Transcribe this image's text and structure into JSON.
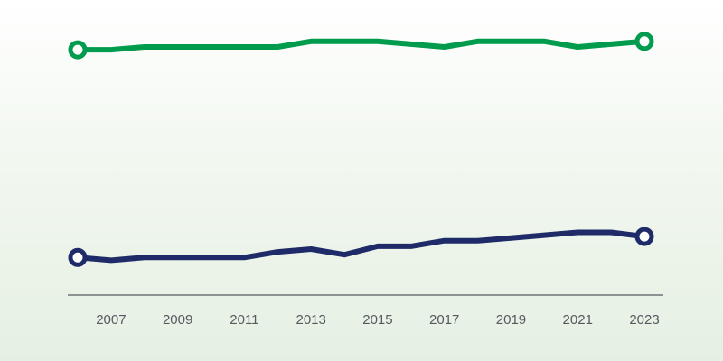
{
  "chart_data": {
    "type": "line",
    "title": "",
    "xlabel": "",
    "ylabel": "",
    "x": [
      2006,
      2007,
      2008,
      2009,
      2010,
      2011,
      2012,
      2013,
      2014,
      2015,
      2016,
      2017,
      2018,
      2019,
      2020,
      2021,
      2022,
      2023
    ],
    "xticks": [
      "2007",
      "2009",
      "2011",
      "2013",
      "2015",
      "2017",
      "2019",
      "2021",
      "2023"
    ],
    "xlim": [
      2006,
      2023
    ],
    "ylim": [
      0,
      100
    ],
    "grid": false,
    "legend": "none",
    "series": [
      {
        "color": "#009b4c",
        "values": [
          88,
          88,
          89,
          89,
          89,
          89,
          89,
          91,
          91,
          91,
          90,
          89,
          91,
          91,
          91,
          89,
          90,
          91
        ]
      },
      {
        "color": "#1f2a68",
        "values": [
          13.5,
          12.5,
          13.5,
          13.5,
          13.5,
          13.5,
          15.5,
          16.5,
          14.5,
          17.5,
          17.5,
          19.5,
          19.5,
          20.5,
          21.5,
          22.5,
          22.5,
          21
        ]
      }
    ],
    "axis_color": "#555a5f"
  }
}
